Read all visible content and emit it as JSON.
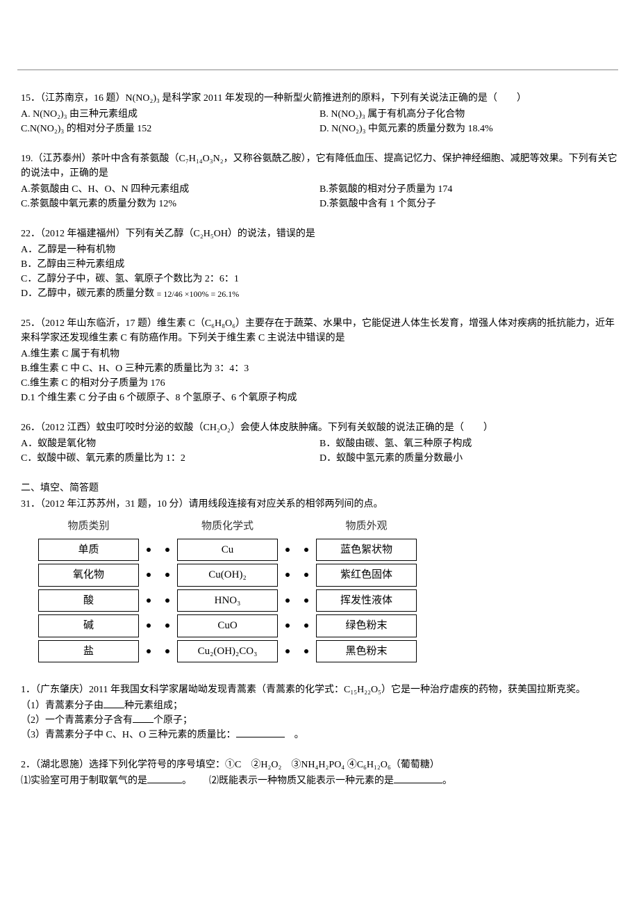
{
  "q15": {
    "stem": "15．（江苏南京，16 题）N(NO₂)₃ 是科学家 2011 年发现的一种新型火箭推进剂的原料，下列有关说法正确的是（　　）",
    "optA": "A. N(NO₂)₃ 由三种元素组成",
    "optB": "B. N(NO₂)₃ 属于有机高分子化合物",
    "optC": "C.N(NO₂)₃ 的相对分子质量 152",
    "optD": "D. N(NO₂)₃ 中氮元素的质量分数为 18.4%"
  },
  "q19": {
    "stem": "19.（江苏泰州）茶叶中含有茶氨酸（C₇H₁₄O₃N₂，又称谷氨酰乙胺），它有降低血压、提高记忆力、保护神经细胞、减肥等效果。下列有关它的说法中，正确的是",
    "optA": "A.茶氨酸由 C、H、O、N 四种元素组成",
    "optB": "B.茶氨酸的相对分子质量为 174",
    "optC": "C.茶氨酸中氧元素的质量分数为 12%",
    "optD": "D.茶氨酸中含有 1 个氮分子"
  },
  "q22": {
    "stem": "22．（2012 年福建福州）下列有关乙醇（C₂H₅OH）的说法，错误的是",
    "optA": "A．乙醇是一种有机物",
    "optB": "B．乙醇由三种元素组成",
    "optC": "C．乙醇分子中，碳、氢、氧原子个数比为 2：6：1",
    "optD_prefix": "D．乙醇中，碳元素的质量分数",
    "optD_frac": "= 12/46 ×100% = 26.1%"
  },
  "q25": {
    "stem": "25．（2012 年山东临沂，17 题）维生素 C（C₆H₈O₆）主要存在于蔬菜、水果中，它能促进人体生长发育，增强人体对疾病的抵抗能力，近年来科学家还发现维生素 C 有防癌作用。下列关于维生素 C 主说法中错误的是",
    "optA": "A.维生素 C 属于有机物",
    "optB": "B.维生素 C 中 C、H、O 三种元素的质量比为 3：4：3",
    "optC": "C.维生素 C 的相对分子质量为 176",
    "optD": "D.1 个维生素 C 分子由 6 个碳原子、8 个氢原子、6 个氧原子构成"
  },
  "q26": {
    "stem": "26．（2012 江西）蚊虫叮咬时分泌的蚁酸（CH₂O₂）会使人体皮肤肿痛。下列有关蚁酸的说法正确的是（　　）",
    "optA": "A．蚁酸是氧化物",
    "optB": "B．蚁酸由碳、氢、氧三种原子构成",
    "optC": "C．蚁酸中碳、氧元素的质量比为 1：2",
    "optD": "D．蚁酸中氢元素的质量分数最小"
  },
  "section2_title": "二、填空、简答题",
  "q31": {
    "stem": "31．（2012 年江苏苏州，31 题，10 分）请用线段连接有对应关系的相邻两列间的点。",
    "headers": [
      "物质类别",
      "物质化学式",
      "物质外观"
    ],
    "col1": [
      "单质",
      "氧化物",
      "酸",
      "碱",
      "盐"
    ],
    "col2": [
      "Cu",
      "Cu(OH)₂",
      "HNO₃",
      "CuO",
      "Cu₂(OH)₂CO₃"
    ],
    "col3": [
      "蓝色絮状物",
      "紫红色固体",
      "挥发性液体",
      "绿色粉末",
      "黑色粉末"
    ]
  },
  "qGD": {
    "stem": "1．（广东肇庆）2011 年我国女科学家屠呦呦发现青蒿素（青蒿素的化学式：C₁₅H₂₂O₅）它是一种治疗虐疾的药物，获美国拉斯克奖。",
    "p1_a": "（1）青蒿素分子由",
    "p1_b": "种元素组成；",
    "p2_a": "（2）一个青蒿素分子含有",
    "p2_b": "个原子；",
    "p3_a": "（3）青蒿素分子中 C、H、O 三种元素的质量比：",
    "p3_b": "。"
  },
  "qHB": {
    "stem": "2．（湖北恩施）选择下列化学符号的序号填空：①C　②H₂O₂　③NH₄H₂PO₄ ④C₆H₁₂O₆（葡萄糖）",
    "p1_a": "⑴实验室可用于制取氧气的是",
    "p1_b": "。",
    "p2_a": "⑵既能表示一种物质又能表示一种元素的是",
    "p2_b": "。"
  }
}
